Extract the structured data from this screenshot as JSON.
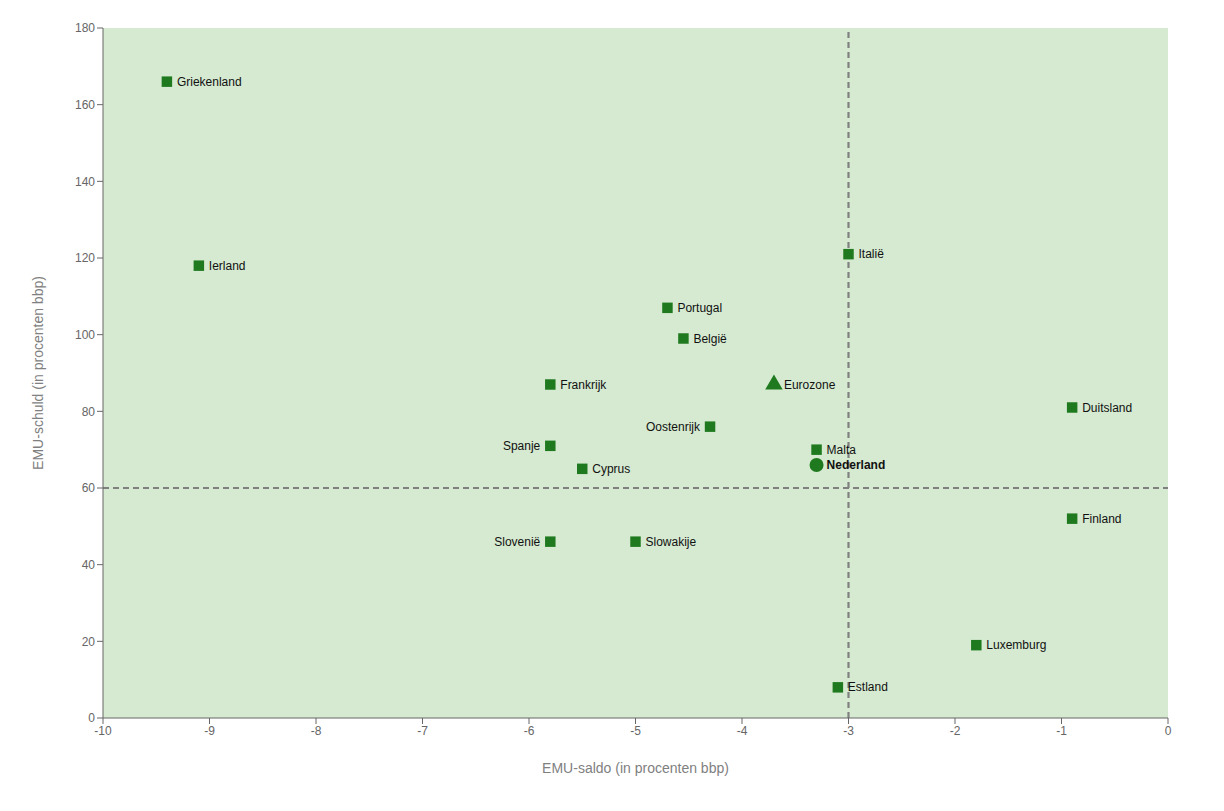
{
  "chart_data": {
    "type": "scatter",
    "xlabel": "EMU-saldo (in procenten bbp)",
    "ylabel": "EMU-schuld (in procenten bbp)",
    "xlim": [
      -10,
      0
    ],
    "ylim": [
      0,
      180
    ],
    "xticks": [
      -10,
      -9,
      -8,
      -7,
      -6,
      -5,
      -4,
      -3,
      -2,
      -1,
      0
    ],
    "yticks": [
      0,
      20,
      40,
      60,
      80,
      100,
      120,
      140,
      160,
      180
    ],
    "grid": false,
    "bg_color": "#d5ead0",
    "ref_line_color": "#808080",
    "vlines": [
      -3
    ],
    "hlines": [
      60
    ],
    "series": [
      {
        "marker": "square",
        "color": "#1f7a1f",
        "labels": [
          "Griekenland",
          "Ierland",
          "Portugal",
          "België",
          "Frankrijk",
          "Italië",
          "Spanje",
          "Cyprus",
          "Oostenrijk",
          "Malta",
          "Duitsland",
          "Finland",
          "Slovenië",
          "Slowakije",
          "Luxemburg",
          "Estland"
        ],
        "x": [
          -9.4,
          -9.1,
          -4.7,
          -4.55,
          -5.8,
          -3.0,
          -5.8,
          -5.5,
          -4.3,
          -3.3,
          -0.9,
          -0.9,
          -5.8,
          -5.0,
          -1.8,
          -3.1
        ],
        "values": [
          166,
          118,
          107,
          99,
          87,
          121,
          71,
          65,
          76,
          70,
          81,
          52,
          46,
          46,
          19,
          8
        ]
      },
      {
        "marker": "triangle",
        "color": "#1f7a1f",
        "labels": [
          "Eurozone"
        ],
        "x": [
          -3.7
        ],
        "values": [
          87
        ]
      },
      {
        "marker": "circle",
        "color": "#1f7a1f",
        "labels": [
          "Nederland"
        ],
        "x": [
          -3.3
        ],
        "values": [
          66
        ]
      }
    ]
  }
}
